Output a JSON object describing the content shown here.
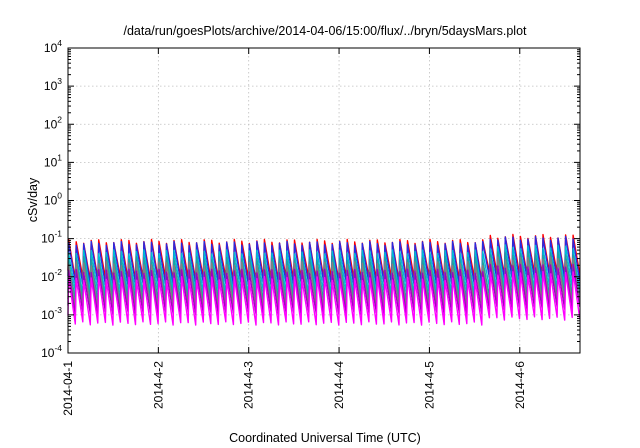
{
  "chart_data": {
    "type": "line",
    "title": "/data/run/goesPlots/archive/2014-04-06/15:00/flux/../bryn/5daysMars.plot",
    "xlabel": "Coordinated Universal Time (UTC)",
    "ylabel": "cSv/day",
    "xlim": [
      "2014-04-01",
      "2014-04-06 16:00"
    ],
    "ylim": [
      0.0001,
      10000
    ],
    "yscale": "log",
    "grid": true,
    "x_ticks": [
      "2014-04-1",
      "2014-4-2",
      "2014-4-3",
      "2014-4-4",
      "2014-4-5",
      "2014-4-6"
    ],
    "y_ticks": [
      {
        "value": 0.0001,
        "base": "10",
        "exp": "-4"
      },
      {
        "value": 0.001,
        "base": "10",
        "exp": "-3"
      },
      {
        "value": 0.01,
        "base": "10",
        "exp": "-2"
      },
      {
        "value": 0.1,
        "base": "10",
        "exp": "-1"
      },
      {
        "value": 1,
        "base": "10",
        "exp": "0"
      },
      {
        "value": 10,
        "base": "10",
        "exp": "1"
      },
      {
        "value": 100,
        "base": "10",
        "exp": "2"
      },
      {
        "value": 1000,
        "base": "10",
        "exp": "3"
      },
      {
        "value": 10000,
        "base": "10",
        "exp": "4"
      }
    ],
    "pattern": {
      "description_of_shape": "periodic sawtooth: sharp rise to peak then gradual decay",
      "period_hours": 2.0,
      "first_peak": "2014-04-01 00:10",
      "enhanced_from": "2014-04-05 16:00",
      "enhanced_factor": 1.35
    },
    "series": [
      {
        "color": "#ff0000",
        "peak": 0.085,
        "trough": 0.009
      },
      {
        "color": "#2a2ae0",
        "peak": 0.075,
        "trough": 0.0065
      },
      {
        "color": "#00bcd4",
        "peak": 0.045,
        "trough": 0.0038
      },
      {
        "color": "#20a0a0",
        "peak": 0.03,
        "trough": 0.0024
      },
      {
        "color": "#808080",
        "peak": 0.022,
        "trough": 0.0016
      },
      {
        "color": "#a000c0",
        "peak": 0.014,
        "trough": 0.0011
      },
      {
        "color": "#ff00ff",
        "peak": 0.009,
        "trough": 0.0006
      }
    ]
  }
}
